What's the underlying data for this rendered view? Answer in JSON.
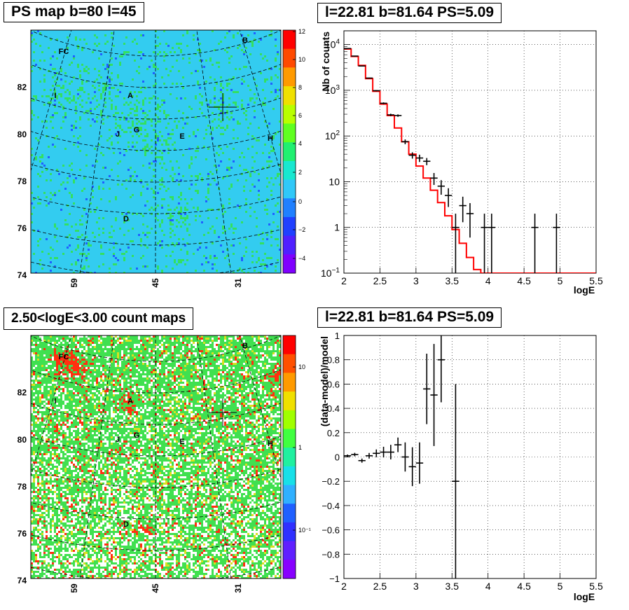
{
  "panels": {
    "ps_map": {
      "title": "PS map b=80 l=45",
      "palette_ticks": [
        "12",
        "10",
        "8",
        "6",
        "4",
        "2",
        "0",
        "−2",
        "−4"
      ],
      "y_ticks": [
        "82",
        "80",
        "78",
        "76",
        "74"
      ],
      "x_ticks": [
        "59",
        "45",
        "31"
      ],
      "sources": [
        "FC",
        "B",
        "I",
        "A",
        "J",
        "G",
        "E",
        "H",
        "D"
      ]
    },
    "spectrum": {
      "title": "l=22.81 b=81.64 PS=5.09",
      "xlabel": "logE",
      "ylabel": "Nb of counts"
    },
    "count_map": {
      "title": "2.50<logE<3.00 count maps",
      "palette_ticks": [
        "10",
        "1",
        "10⁻¹"
      ],
      "y_ticks": [
        "82",
        "80",
        "78",
        "76",
        "74"
      ],
      "x_ticks": [
        "59",
        "45",
        "31"
      ],
      "sources": [
        "FC",
        "B",
        "I",
        "A",
        "J",
        "G",
        "E",
        "H",
        "D"
      ]
    },
    "residual": {
      "title": "l=22.81 b=81.64 PS=5.09",
      "xlabel": "logE",
      "ylabel": "(data-model)/model"
    }
  },
  "chart_data": [
    {
      "type": "heatmap",
      "title": "PS map b=80 l=45",
      "x_ticks": [
        59,
        45,
        31
      ],
      "y_ticks": [
        82,
        80,
        78,
        76,
        74
      ],
      "zlim": [
        -5,
        12
      ],
      "colors": {
        "background": "#33ccf0",
        "low": "#2060ff",
        "high": "#33e060",
        "marker": "#000000"
      },
      "grid": "curved coordinate grid (dashed)"
    },
    {
      "type": "line",
      "title": "l=22.81 b=81.64 PS=5.09",
      "xlabel": "logE",
      "ylabel": "Nb of counts",
      "xlim": [
        2,
        5.5
      ],
      "ylim": [
        0.1,
        20000
      ],
      "y_scale": "log",
      "x_ticks": [
        2,
        2.5,
        3,
        3.5,
        4,
        4.5,
        5,
        5.5
      ],
      "grid": true,
      "series": [
        {
          "kind": "model_step",
          "color": "#ff0000",
          "x_edges": [
            2,
            2.1,
            2.2,
            2.3,
            2.4,
            2.5,
            2.6,
            2.7,
            2.8,
            2.9,
            3.0,
            3.1,
            3.2,
            3.3,
            3.4,
            3.5,
            3.6,
            3.7,
            3.8,
            3.9,
            4.0,
            5.5
          ],
          "values": [
            8000,
            5500,
            3500,
            1800,
            950,
            500,
            280,
            150,
            75,
            40,
            22,
            12,
            6.5,
            3.5,
            1.8,
            0.9,
            0.45,
            0.22,
            0.12,
            0.1,
            0.1
          ]
        },
        {
          "kind": "data_points",
          "color": "#000000",
          "x": [
            2.05,
            2.15,
            2.25,
            2.35,
            2.45,
            2.55,
            2.65,
            2.75,
            2.85,
            2.95,
            3.05,
            3.15,
            3.25,
            3.35,
            3.45,
            3.55,
            3.65,
            3.75,
            3.95,
            4.05,
            4.65,
            4.95
          ],
          "y": [
            8200,
            5600,
            3400,
            1850,
            980,
            520,
            290,
            280,
            75,
            38,
            33,
            28,
            12,
            8,
            5,
            1,
            3,
            2,
            1,
            1,
            1,
            1
          ],
          "yerr": [
            90,
            75,
            58,
            43,
            31,
            23,
            17,
            17,
            9,
            6,
            6,
            5,
            3.5,
            2.8,
            2.2,
            1,
            1.7,
            1.4,
            1,
            1,
            1,
            1
          ]
        }
      ]
    },
    {
      "type": "heatmap",
      "title": "2.50<logE<3.00 count maps",
      "x_ticks": [
        59,
        45,
        31
      ],
      "y_ticks": [
        82,
        80,
        78,
        76,
        74
      ],
      "z_scale": "log",
      "z_ticks": [
        "10",
        "1",
        "10⁻¹"
      ],
      "colors": {
        "background": "#40e050",
        "low": "#ffffff",
        "high": "#ff3010"
      }
    },
    {
      "type": "scatter",
      "title": "l=22.81 b=81.64 PS=5.09",
      "xlabel": "logE",
      "ylabel": "(data-model)/model",
      "xlim": [
        2,
        5.5
      ],
      "ylim": [
        -1,
        1
      ],
      "x_ticks": [
        2,
        2.5,
        3,
        3.5,
        4,
        4.5,
        5,
        5.5
      ],
      "y_ticks": [
        -1,
        -0.8,
        -0.6,
        -0.4,
        -0.2,
        0,
        0.2,
        0.4,
        0.6,
        0.8,
        1
      ],
      "grid": true,
      "x": [
        2.05,
        2.15,
        2.25,
        2.35,
        2.45,
        2.55,
        2.65,
        2.75,
        2.85,
        2.95,
        3.05,
        3.15,
        3.25,
        3.35,
        3.55
      ],
      "y": [
        0.01,
        0.02,
        -0.03,
        0.01,
        0.03,
        0.04,
        0.04,
        0.1,
        0.0,
        -0.08,
        -0.05,
        0.56,
        0.51,
        0.8,
        -0.2
      ],
      "yerr": [
        0.01,
        0.014,
        0.017,
        0.023,
        0.032,
        0.044,
        0.06,
        0.06,
        0.12,
        0.16,
        0.17,
        0.29,
        0.42,
        0.35,
        0.8
      ]
    }
  ]
}
